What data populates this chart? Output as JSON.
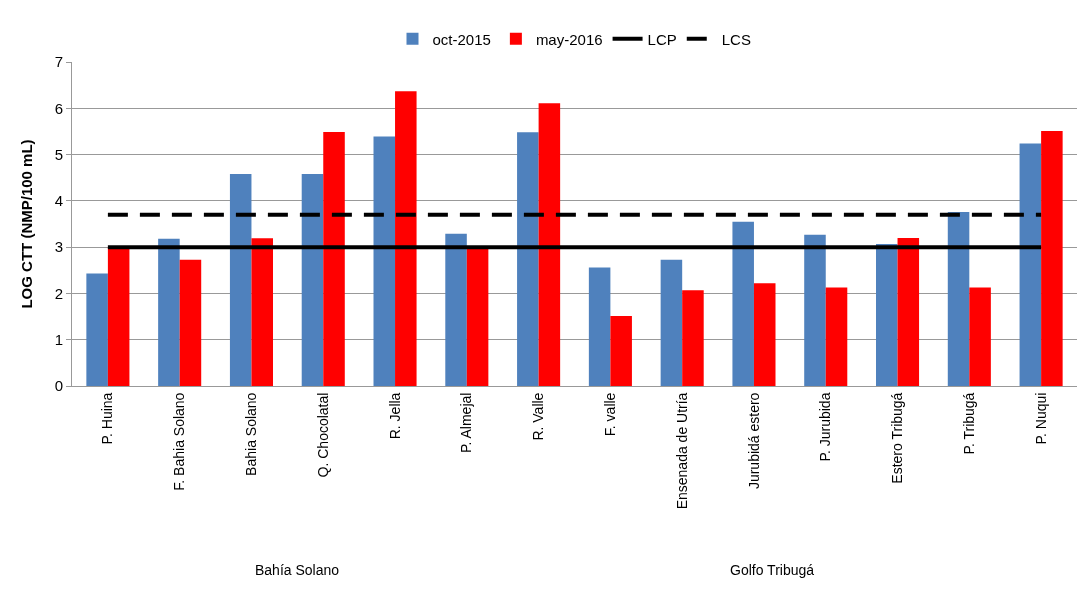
{
  "chart_data": {
    "type": "bar",
    "ylabel": "LOG CTT (NMP/100 mL)",
    "categories": [
      "P. Huina",
      "F. Bahia Solano",
      "Bahia Solano",
      "Q. Chocolatal",
      "R. Jella",
      "P. Almejal",
      "R. Valle",
      "F. valle",
      "Ensenada de Utría",
      "Jurubidá estero",
      "P. Jurubida",
      "Estero Tribugá",
      "P. Tribugá",
      "P. Nuqui"
    ],
    "series": [
      {
        "name": "oct-2015",
        "color": "#4f81bd",
        "values": [
          2.43,
          3.18,
          4.58,
          4.58,
          5.39,
          3.29,
          5.48,
          2.56,
          2.73,
          3.55,
          3.27,
          3.07,
          3.76,
          5.24
        ]
      },
      {
        "name": "may-2016",
        "color": "#ff0000",
        "values": [
          3.0,
          2.73,
          3.19,
          5.49,
          6.37,
          2.96,
          6.11,
          1.51,
          2.07,
          2.22,
          2.13,
          3.2,
          2.13,
          5.51
        ]
      },
      {
        "name": "LCP",
        "type": "line",
        "color": "#000000",
        "line_style": "solid",
        "values": [
          3,
          3,
          3,
          3,
          3,
          3,
          3,
          3,
          3,
          3,
          3,
          3,
          3,
          3
        ]
      },
      {
        "name": "LCS",
        "type": "line",
        "color": "#000000",
        "line_style": "dashed",
        "values": [
          3.7,
          3.7,
          3.7,
          3.7,
          3.7,
          3.7,
          3.7,
          3.7,
          3.7,
          3.7,
          3.7,
          3.7,
          3.7,
          3.7
        ]
      }
    ],
    "ylim": [
      0,
      7
    ],
    "yticks": [
      0,
      1,
      2,
      3,
      4,
      5,
      6,
      7
    ],
    "grid": "y",
    "legend": "top",
    "marker": "none",
    "annotations": [
      "Bahía Solano",
      "Golfo Tribugá"
    ]
  }
}
